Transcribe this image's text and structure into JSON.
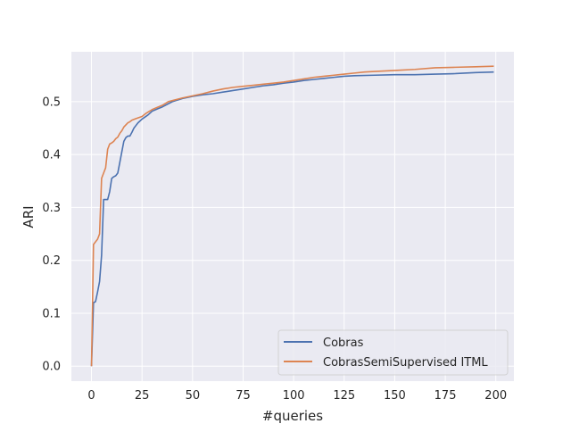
{
  "chart_data": {
    "type": "line",
    "title": "",
    "xlabel": "#queries",
    "ylabel": "ARI",
    "xlim": [
      -9.95,
      208.95
    ],
    "ylim": [
      -0.0283,
      0.5943
    ],
    "xticks": [
      0,
      25,
      50,
      75,
      100,
      125,
      150,
      175,
      200
    ],
    "yticks": [
      0.0,
      0.1,
      0.2,
      0.3,
      0.4,
      0.5
    ],
    "ytick_labels": [
      "0.0",
      "0.1",
      "0.2",
      "0.3",
      "0.4",
      "0.5"
    ],
    "grid": true,
    "legend_position": "lower-right",
    "colors": {
      "background": "#eaeaf2",
      "grid": "#ffffff",
      "Cobras": "#4c72b0",
      "CobrasSemiSupervised ITML": "#dd8452"
    },
    "series": [
      {
        "name": "Cobras",
        "color": "#4c72b0",
        "points": [
          [
            0,
            0.0
          ],
          [
            1,
            0.12
          ],
          [
            2,
            0.122
          ],
          [
            3,
            0.14
          ],
          [
            4,
            0.16
          ],
          [
            5,
            0.21
          ],
          [
            6,
            0.315
          ],
          [
            7,
            0.315
          ],
          [
            8,
            0.315
          ],
          [
            9,
            0.33
          ],
          [
            10,
            0.355
          ],
          [
            11,
            0.358
          ],
          [
            12,
            0.36
          ],
          [
            13,
            0.365
          ],
          [
            14,
            0.385
          ],
          [
            15,
            0.405
          ],
          [
            16,
            0.425
          ],
          [
            17,
            0.432
          ],
          [
            18,
            0.435
          ],
          [
            19,
            0.435
          ],
          [
            20,
            0.442
          ],
          [
            21,
            0.45
          ],
          [
            22,
            0.455
          ],
          [
            23,
            0.46
          ],
          [
            25,
            0.467
          ],
          [
            28,
            0.475
          ],
          [
            30,
            0.482
          ],
          [
            33,
            0.487
          ],
          [
            35,
            0.49
          ],
          [
            40,
            0.5
          ],
          [
            45,
            0.506
          ],
          [
            50,
            0.51
          ],
          [
            55,
            0.513
          ],
          [
            60,
            0.515
          ],
          [
            65,
            0.518
          ],
          [
            70,
            0.521
          ],
          [
            75,
            0.524
          ],
          [
            80,
            0.527
          ],
          [
            85,
            0.53
          ],
          [
            90,
            0.532
          ],
          [
            95,
            0.535
          ],
          [
            100,
            0.537
          ],
          [
            105,
            0.54
          ],
          [
            110,
            0.542
          ],
          [
            115,
            0.544
          ],
          [
            120,
            0.546
          ],
          [
            125,
            0.548
          ],
          [
            130,
            0.549
          ],
          [
            140,
            0.55
          ],
          [
            150,
            0.551
          ],
          [
            160,
            0.551
          ],
          [
            170,
            0.552
          ],
          [
            180,
            0.553
          ],
          [
            190,
            0.555
          ],
          [
            199,
            0.556
          ]
        ]
      },
      {
        "name": "CobrasSemiSupervised ITML",
        "color": "#dd8452",
        "points": [
          [
            0,
            0.0
          ],
          [
            1,
            0.23
          ],
          [
            2,
            0.235
          ],
          [
            3,
            0.24
          ],
          [
            4,
            0.25
          ],
          [
            5,
            0.355
          ],
          [
            6,
            0.365
          ],
          [
            7,
            0.375
          ],
          [
            8,
            0.41
          ],
          [
            9,
            0.42
          ],
          [
            10,
            0.422
          ],
          [
            11,
            0.425
          ],
          [
            12,
            0.43
          ],
          [
            13,
            0.433
          ],
          [
            14,
            0.44
          ],
          [
            15,
            0.445
          ],
          [
            16,
            0.452
          ],
          [
            17,
            0.456
          ],
          [
            18,
            0.46
          ],
          [
            19,
            0.462
          ],
          [
            20,
            0.465
          ],
          [
            22,
            0.468
          ],
          [
            25,
            0.472
          ],
          [
            27,
            0.478
          ],
          [
            30,
            0.485
          ],
          [
            33,
            0.49
          ],
          [
            35,
            0.493
          ],
          [
            38,
            0.5
          ],
          [
            40,
            0.502
          ],
          [
            45,
            0.507
          ],
          [
            50,
            0.511
          ],
          [
            55,
            0.515
          ],
          [
            60,
            0.52
          ],
          [
            65,
            0.524
          ],
          [
            70,
            0.527
          ],
          [
            75,
            0.529
          ],
          [
            80,
            0.531
          ],
          [
            85,
            0.533
          ],
          [
            90,
            0.535
          ],
          [
            95,
            0.537
          ],
          [
            100,
            0.54
          ],
          [
            105,
            0.543
          ],
          [
            110,
            0.546
          ],
          [
            115,
            0.548
          ],
          [
            120,
            0.55
          ],
          [
            125,
            0.552
          ],
          [
            130,
            0.554
          ],
          [
            135,
            0.556
          ],
          [
            140,
            0.557
          ],
          [
            150,
            0.559
          ],
          [
            160,
            0.561
          ],
          [
            170,
            0.564
          ],
          [
            180,
            0.565
          ],
          [
            190,
            0.566
          ],
          [
            199,
            0.567
          ]
        ]
      }
    ]
  }
}
